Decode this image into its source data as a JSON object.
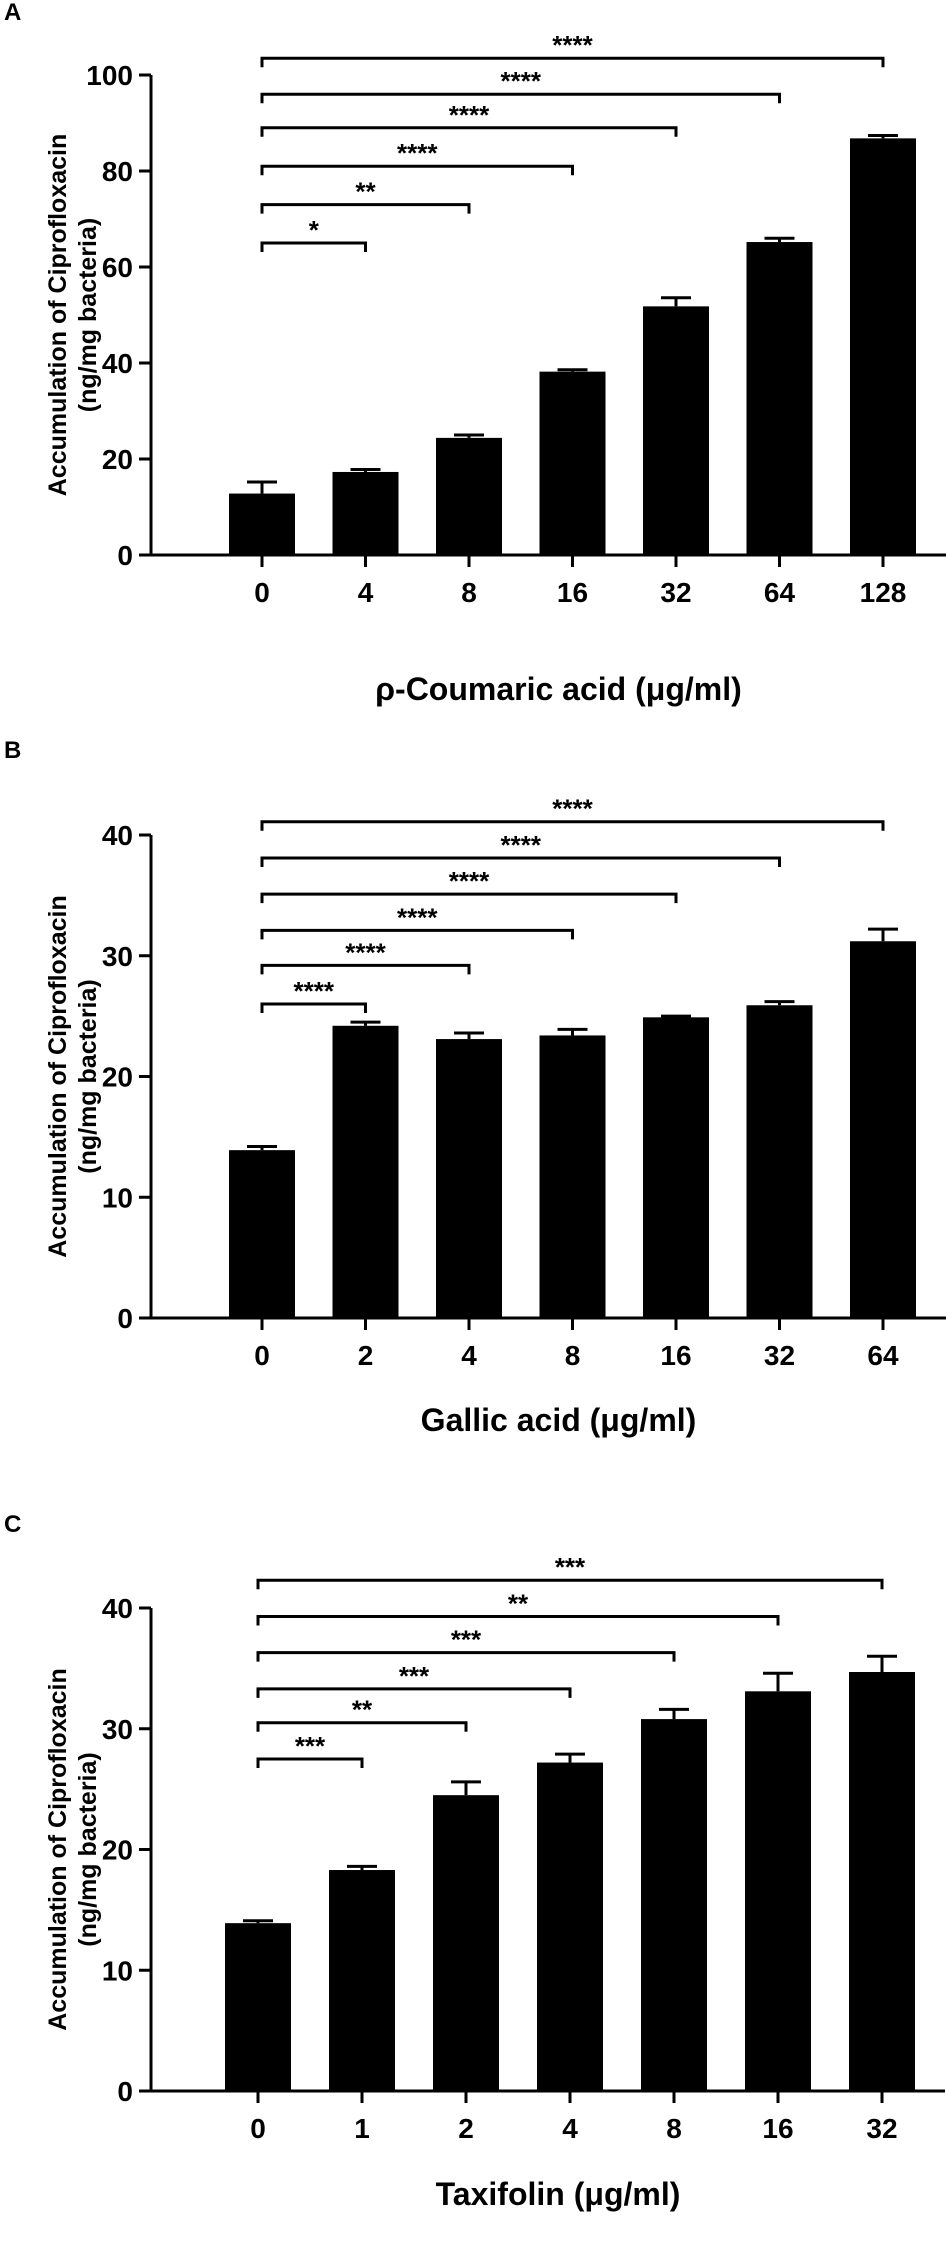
{
  "chart_data": [
    {
      "panel_label": "A",
      "type": "bar",
      "categories": [
        "0",
        "4",
        "8",
        "16",
        "32",
        "64",
        "128"
      ],
      "values": [
        12.8,
        17.3,
        24.4,
        38.2,
        51.8,
        65.2,
        86.8
      ],
      "errors": [
        2.4,
        0.5,
        0.6,
        0.4,
        1.8,
        0.8,
        0.6
      ],
      "ylim": [
        0,
        100
      ],
      "yticks": [
        "0",
        "20",
        "40",
        "60",
        "80",
        "100"
      ],
      "ytick_values": [
        0,
        20,
        40,
        60,
        80,
        100
      ],
      "ylabel_line1": "Accumulation of Ciprofloxacin",
      "ylabel_line2": "(ng/mg bacteria)",
      "xlabel": "ρ-Coumaric acid (μg/ml)",
      "significance": [
        {
          "from": "0",
          "to": "4",
          "label": "*",
          "level": 65
        },
        {
          "from": "0",
          "to": "8",
          "label": "**",
          "level": 73
        },
        {
          "from": "0",
          "to": "16",
          "label": "****",
          "level": 81
        },
        {
          "from": "0",
          "to": "32",
          "label": "****",
          "level": 89
        },
        {
          "from": "0",
          "to": "64",
          "label": "****",
          "level": 96
        },
        {
          "from": "0",
          "to": "128",
          "label": "****",
          "level": 103.5
        }
      ],
      "bar_color": "#000000",
      "grid": false
    },
    {
      "panel_label": "B",
      "type": "bar",
      "categories": [
        "0",
        "2",
        "4",
        "8",
        "16",
        "32",
        "64"
      ],
      "values": [
        13.9,
        24.2,
        23.1,
        23.4,
        24.9,
        25.9,
        31.2
      ],
      "errors": [
        0.3,
        0.3,
        0.5,
        0.5,
        0.1,
        0.3,
        1.0
      ],
      "ylim": [
        0,
        40
      ],
      "yticks": [
        "0",
        "10",
        "20",
        "30",
        "40"
      ],
      "ytick_values": [
        0,
        10,
        20,
        30,
        40
      ],
      "ylabel_line1": "Accumulation of Ciprofloxacin",
      "ylabel_line2": "(ng/mg bacteria)",
      "xlabel": "Gallic acid (μg/ml)",
      "significance": [
        {
          "from": "0",
          "to": "2",
          "label": "****",
          "level": 26
        },
        {
          "from": "0",
          "to": "4",
          "label": "****",
          "level": 29.2
        },
        {
          "from": "0",
          "to": "8",
          "label": "****",
          "level": 32.1
        },
        {
          "from": "0",
          "to": "16",
          "label": "****",
          "level": 35.1
        },
        {
          "from": "0",
          "to": "32",
          "label": "****",
          "level": 38.1
        },
        {
          "from": "0",
          "to": "64",
          "label": "****",
          "level": 41.1
        }
      ],
      "bar_color": "#000000",
      "grid": false
    },
    {
      "panel_label": "C",
      "type": "bar",
      "categories": [
        "0",
        "1",
        "2",
        "4",
        "8",
        "16",
        "32"
      ],
      "values": [
        13.9,
        18.3,
        24.5,
        27.2,
        30.8,
        33.1,
        34.7
      ],
      "errors": [
        0.2,
        0.3,
        1.1,
        0.7,
        0.8,
        1.5,
        1.3
      ],
      "ylim": [
        0,
        40
      ],
      "yticks": [
        "0",
        "10",
        "20",
        "30",
        "40"
      ],
      "ytick_values": [
        0,
        10,
        20,
        30,
        40
      ],
      "ylabel_line1": "Accumulation of Ciprofloxacin",
      "ylabel_line2": "(ng/mg bacteria)",
      "xlabel": "Taxifolin (μg/ml)",
      "significance": [
        {
          "from": "0",
          "to": "1",
          "label": "***",
          "level": 27.5
        },
        {
          "from": "0",
          "to": "2",
          "label": "**",
          "level": 30.5
        },
        {
          "from": "0",
          "to": "4",
          "label": "***",
          "level": 33.3
        },
        {
          "from": "0",
          "to": "8",
          "label": "***",
          "level": 36.3
        },
        {
          "from": "0",
          "to": "16",
          "label": "**",
          "level": 39.3
        },
        {
          "from": "0",
          "to": "32",
          "label": "***",
          "level": 42.3
        }
      ],
      "bar_color": "#000000",
      "grid": false
    }
  ]
}
